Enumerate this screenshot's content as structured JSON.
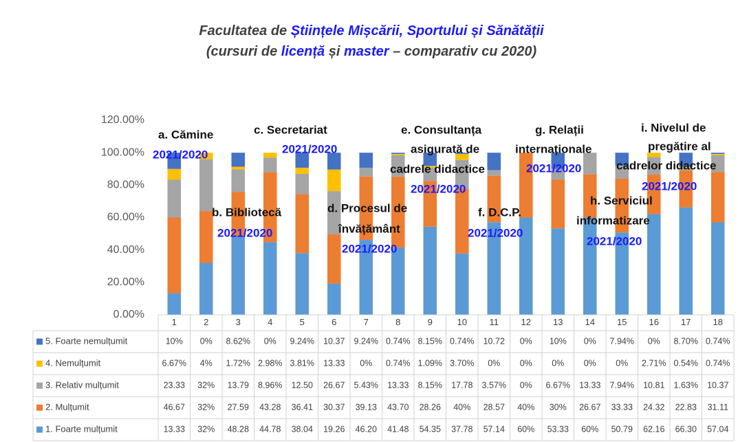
{
  "chart_data": {
    "type": "stacked_bar",
    "title": [
      [
        {
          "text": "Facultatea de ",
          "color": "#404040"
        },
        {
          "text": "Științele Mișcării, Sportului și Sănătății",
          "color": "#1a1aff"
        }
      ],
      [
        {
          "text": "(cursuri de ",
          "color": "#404040"
        },
        {
          "text": "licență",
          "color": "#1a1aff"
        },
        {
          "text": " și ",
          "color": "#404040"
        },
        {
          "text": "master",
          "color": "#1a1aff"
        },
        {
          "text": " – comparativ cu 2020)",
          "color": "#404040"
        }
      ]
    ],
    "categories": [
      "1",
      "2",
      "3",
      "4",
      "5",
      "6",
      "7",
      "8",
      "9",
      "10",
      "11",
      "12",
      "13",
      "14",
      "15",
      "16",
      "17",
      "18"
    ],
    "ylim": [
      0,
      120
    ],
    "yticks": [
      {
        "value": 0,
        "label": "0.00%"
      },
      {
        "value": 20,
        "label": "20.00%"
      },
      {
        "value": 40,
        "label": "40.00%"
      },
      {
        "value": 60,
        "label": "60.00%"
      },
      {
        "value": 80,
        "label": "80.00%"
      },
      {
        "value": 100,
        "label": "100.00%"
      },
      {
        "value": 120,
        "label": "120.00%"
      }
    ],
    "grid": false,
    "series": [
      {
        "name": "1. Foarte mulțumit",
        "color": "#5b9bd5",
        "values": [
          13.33,
          32,
          48.28,
          44.78,
          38.04,
          19.26,
          46.2,
          41.48,
          54.35,
          37.78,
          57.14,
          60,
          53.33,
          60,
          50.79,
          62.16,
          66.3,
          57.04
        ],
        "value_labels": [
          "13.33",
          "32%",
          "48.28",
          "44.78",
          "38.04",
          "19.26",
          "46.20",
          "41.48",
          "54.35",
          "37.78",
          "57.14",
          "60%",
          "53.33",
          "60%",
          "50.79",
          "62.16",
          "66.30",
          "57.04"
        ]
      },
      {
        "name": "2. Mulțumit",
        "color": "#ed7d31",
        "values": [
          46.67,
          32,
          27.59,
          43.28,
          36.41,
          30.37,
          39.13,
          43.7,
          28.26,
          40,
          28.57,
          40,
          30,
          26.67,
          33.33,
          24.32,
          22.83,
          31.11
        ],
        "value_labels": [
          "46.67",
          "32%",
          "27.59",
          "43.28",
          "36.41",
          "30.37",
          "39.13",
          "43.70",
          "28.26",
          "40%",
          "28.57",
          "40%",
          "30%",
          "26.67",
          "33.33",
          "24.32",
          "22.83",
          "31.11"
        ]
      },
      {
        "name": "3. Relativ mulțumit",
        "color": "#a5a5a5",
        "values": [
          23.33,
          32,
          13.79,
          8.96,
          12.5,
          26.67,
          5.43,
          13.33,
          8.15,
          17.78,
          3.57,
          0,
          6.67,
          13.33,
          7.94,
          10.81,
          1.63,
          10.37
        ],
        "value_labels": [
          "23.33",
          "32%",
          "13.79",
          "8.96%",
          "12.50",
          "26.67",
          "5.43%",
          "13.33",
          "8.15%",
          "17.78",
          "3.57%",
          "0%",
          "6.67%",
          "13.33",
          "7.94%",
          "10.81",
          "1.63%",
          "10.37"
        ]
      },
      {
        "name": "4. Nemulțumit",
        "color": "#ffc000",
        "values": [
          6.67,
          4,
          1.72,
          2.98,
          3.81,
          13.33,
          0,
          0.74,
          1.09,
          3.7,
          0,
          0,
          0,
          0,
          0,
          2.71,
          0.54,
          0.74
        ],
        "value_labels": [
          "6.67%",
          "4%",
          "1.72%",
          "2.98%",
          "3.81%",
          "13.33",
          "0%",
          "0.74%",
          "1.09%",
          "3.70%",
          "0%",
          "0%",
          "0%",
          "0%",
          "0%",
          "2.71%",
          "0.54%",
          "0.74%"
        ]
      },
      {
        "name": "5. Foarte nemulțumit",
        "color": "#4472c4",
        "values": [
          10,
          0,
          8.62,
          0,
          9.24,
          10.37,
          9.24,
          0.74,
          8.15,
          0.74,
          10.72,
          0,
          10,
          0,
          7.94,
          0,
          8.7,
          0.74
        ],
        "value_labels": [
          "10%",
          "0%",
          "8.62%",
          "0%",
          "9.24%",
          "10.37",
          "9.24%",
          "0.74%",
          "8.15%",
          "0.74%",
          "10.72",
          "0%",
          "10%",
          "0%",
          "7.94%",
          "0%",
          "8.70%",
          "0.74%"
        ]
      }
    ],
    "annotations": [
      {
        "lines": [
          "a. Cămine"
        ],
        "period": "2021/2020"
      },
      {
        "lines": [
          "b. Bibliotecă"
        ],
        "period": "2021/2020"
      },
      {
        "lines": [
          "c. Secretariat"
        ],
        "period": "2021/2020"
      },
      {
        "lines": [
          "d. Procesul de",
          "învățământ"
        ],
        "period": "2021/2020"
      },
      {
        "lines": [
          "e. Consultanța",
          "asigurată de",
          "cadrele didactice"
        ],
        "period": "2021/2020"
      },
      {
        "lines": [
          "f. D.C.P."
        ],
        "period": "2021/2020"
      },
      {
        "lines": [
          "g. Relații",
          "internaționale"
        ],
        "period": "2021/2020"
      },
      {
        "lines": [
          "h. Serviciul",
          "informatizare"
        ],
        "period": "2021/2020"
      },
      {
        "lines": [
          "i. Nivelul de",
          "pregătire al",
          "cadrelor didactice"
        ],
        "period": "2021/2020"
      }
    ]
  }
}
